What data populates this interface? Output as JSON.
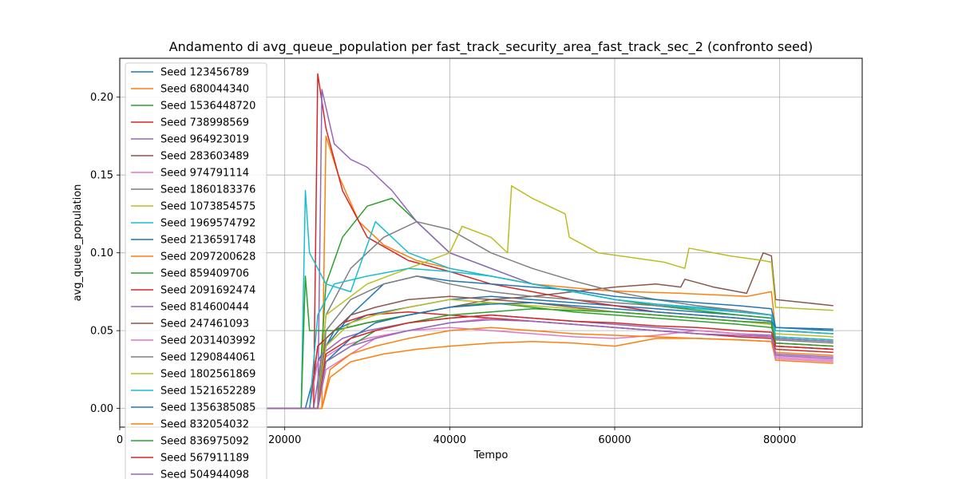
{
  "chart_data": {
    "type": "line",
    "title": "Andamento di avg_queue_population per fast_track_security_area_fast_track_sec_2 (confronto seed)",
    "xlabel": "Tempo",
    "ylabel": "avg_queue_population",
    "xlim": [
      0,
      90000
    ],
    "ylim": [
      -0.012,
      0.225
    ],
    "x_ticks": [
      0,
      20000,
      40000,
      60000,
      80000
    ],
    "x_tick_labels": [
      "0",
      "20000",
      "40000",
      "60000",
      "80000"
    ],
    "y_ticks": [
      0.0,
      0.05,
      0.1,
      0.15,
      0.2
    ],
    "y_tick_labels": [
      "0.00",
      "0.05",
      "0.10",
      "0.15",
      "0.20"
    ],
    "grid": true,
    "legend_position": "top-left",
    "series": [
      {
        "name": "Seed 123456789",
        "color": "#1f77b4",
        "x": [
          15000,
          22500,
          24000,
          26000,
          30000,
          35000,
          40000,
          45000,
          50000,
          55000,
          60000,
          65000,
          70000,
          75000,
          79000,
          79500,
          86500
        ],
        "y": [
          0.0,
          0.0,
          0.03,
          0.05,
          0.06,
          0.065,
          0.07,
          0.072,
          0.07,
          0.068,
          0.066,
          0.064,
          0.062,
          0.06,
          0.058,
          0.05,
          0.048
        ]
      },
      {
        "name": "Seed 680044340",
        "color": "#ff7f0e",
        "x": [
          15000,
          24500,
          25000,
          26500,
          29000,
          32000,
          36000,
          40000,
          45000,
          50000,
          54000,
          58000,
          62000,
          68000,
          72000,
          76000,
          79000,
          79500,
          86500
        ],
        "y": [
          0.0,
          0.0,
          0.175,
          0.15,
          0.12,
          0.105,
          0.095,
          0.09,
          0.085,
          0.08,
          0.078,
          0.076,
          0.075,
          0.074,
          0.073,
          0.072,
          0.075,
          0.05,
          0.048
        ]
      },
      {
        "name": "Seed 1536448720",
        "color": "#2ca02c",
        "x": [
          15000,
          24000,
          25000,
          27000,
          30000,
          33000,
          36000,
          40000,
          45000,
          50000,
          55000,
          60000,
          65000,
          70000,
          75000,
          79000,
          79500,
          86500
        ],
        "y": [
          0.0,
          0.0,
          0.08,
          0.11,
          0.13,
          0.135,
          0.12,
          0.1,
          0.09,
          0.08,
          0.075,
          0.07,
          0.066,
          0.063,
          0.06,
          0.058,
          0.045,
          0.043
        ]
      },
      {
        "name": "Seed 738998569",
        "color": "#d62728",
        "x": [
          15000,
          23500,
          24000,
          25000,
          27000,
          30000,
          35000,
          40000,
          45000,
          50000,
          55000,
          60000,
          65000,
          70000,
          75000,
          79000,
          79500,
          86500
        ],
        "y": [
          0.0,
          0.0,
          0.215,
          0.18,
          0.14,
          0.11,
          0.095,
          0.088,
          0.08,
          0.075,
          0.07,
          0.066,
          0.062,
          0.06,
          0.058,
          0.056,
          0.042,
          0.04
        ]
      },
      {
        "name": "Seed 964923019",
        "color": "#9467bd",
        "x": [
          15000,
          24000,
          24500,
          26000,
          28000,
          30000,
          33000,
          36000,
          40000,
          45000,
          50000,
          55000,
          60000,
          65000,
          70000,
          75000,
          79000,
          79500,
          86500
        ],
        "y": [
          0.0,
          0.0,
          0.205,
          0.17,
          0.16,
          0.155,
          0.14,
          0.12,
          0.1,
          0.09,
          0.08,
          0.075,
          0.07,
          0.067,
          0.065,
          0.063,
          0.06,
          0.045,
          0.043
        ]
      },
      {
        "name": "Seed 283603489",
        "color": "#8c564b",
        "x": [
          15000,
          23000,
          24000,
          26000,
          30000,
          35000,
          40000,
          45000,
          50000,
          55000,
          60000,
          65000,
          68000,
          68500,
          72000,
          76000,
          78000,
          79000,
          79500,
          86500
        ],
        "y": [
          0.0,
          0.0,
          0.04,
          0.05,
          0.055,
          0.06,
          0.065,
          0.07,
          0.072,
          0.075,
          0.078,
          0.08,
          0.078,
          0.083,
          0.078,
          0.074,
          0.1,
          0.098,
          0.07,
          0.066
        ]
      },
      {
        "name": "Seed 974791114",
        "color": "#e377c2",
        "x": [
          15000,
          23000,
          24000,
          27000,
          30000,
          35000,
          40000,
          45000,
          50000,
          55000,
          60000,
          65000,
          70000,
          75000,
          79000,
          79500,
          86500
        ],
        "y": [
          0.0,
          0.0,
          0.03,
          0.04,
          0.045,
          0.05,
          0.055,
          0.058,
          0.056,
          0.054,
          0.052,
          0.05,
          0.048,
          0.046,
          0.045,
          0.033,
          0.031
        ]
      },
      {
        "name": "Seed 1860183376",
        "color": "#7f7f7f",
        "x": [
          15000,
          24000,
          25000,
          28000,
          32000,
          36000,
          40000,
          45000,
          50000,
          55000,
          60000,
          65000,
          70000,
          75000,
          79000,
          79500,
          86500
        ],
        "y": [
          0.0,
          0.0,
          0.06,
          0.09,
          0.11,
          0.12,
          0.115,
          0.1,
          0.09,
          0.082,
          0.075,
          0.07,
          0.066,
          0.063,
          0.06,
          0.04,
          0.038
        ]
      },
      {
        "name": "Seed 1073854575",
        "color": "#bcbd22",
        "x": [
          15000,
          24000,
          25000,
          30000,
          35000,
          40000,
          41500,
          45000,
          47000,
          47500,
          50000,
          54000,
          54500,
          58000,
          62000,
          66000,
          68500,
          69000,
          74000,
          78000,
          79000,
          79500,
          86500
        ],
        "y": [
          0.0,
          0.0,
          0.06,
          0.08,
          0.09,
          0.1,
          0.117,
          0.11,
          0.1,
          0.143,
          0.135,
          0.125,
          0.11,
          0.1,
          0.097,
          0.094,
          0.09,
          0.103,
          0.098,
          0.095,
          0.094,
          0.065,
          0.063
        ]
      },
      {
        "name": "Seed 1969574792",
        "color": "#17becf",
        "x": [
          15000,
          22000,
          22500,
          23000,
          25000,
          28000,
          31000,
          35000,
          40000,
          45000,
          50000,
          55000,
          60000,
          65000,
          70000,
          75000,
          79000,
          79500,
          86500
        ],
        "y": [
          0.0,
          0.0,
          0.14,
          0.1,
          0.08,
          0.075,
          0.12,
          0.1,
          0.09,
          0.085,
          0.08,
          0.075,
          0.07,
          0.067,
          0.065,
          0.062,
          0.06,
          0.05,
          0.048
        ]
      },
      {
        "name": "Seed 2136591748",
        "color": "#1f77b4",
        "x": [
          15000,
          24000,
          25000,
          28000,
          32000,
          36000,
          40000,
          45000,
          50000,
          55000,
          60000,
          65000,
          70000,
          75000,
          79000,
          79500,
          86500
        ],
        "y": [
          0.0,
          0.0,
          0.04,
          0.06,
          0.08,
          0.085,
          0.082,
          0.08,
          0.078,
          0.076,
          0.072,
          0.07,
          0.068,
          0.066,
          0.064,
          0.052,
          0.05
        ]
      },
      {
        "name": "Seed 2097200628",
        "color": "#ff7f0e",
        "x": [
          15000,
          24500,
          25500,
          28000,
          32000,
          36000,
          40000,
          45000,
          50000,
          55000,
          60000,
          65000,
          70000,
          75000,
          79000,
          79500,
          86500
        ],
        "y": [
          0.0,
          0.0,
          0.02,
          0.03,
          0.035,
          0.038,
          0.04,
          0.042,
          0.043,
          0.042,
          0.04,
          0.045,
          0.045,
          0.044,
          0.043,
          0.031,
          0.029
        ]
      },
      {
        "name": "Seed 859409706",
        "color": "#2ca02c",
        "x": [
          15000,
          22000,
          22500,
          23000,
          26000,
          30000,
          35000,
          40000,
          45000,
          50000,
          55000,
          60000,
          65000,
          70000,
          75000,
          79000,
          79500,
          86500
        ],
        "y": [
          0.0,
          0.0,
          0.085,
          0.05,
          0.05,
          0.055,
          0.06,
          0.065,
          0.068,
          0.065,
          0.062,
          0.06,
          0.058,
          0.056,
          0.054,
          0.052,
          0.046,
          0.044
        ]
      },
      {
        "name": "Seed 2091692474",
        "color": "#d62728",
        "x": [
          15000,
          23000,
          24000,
          27000,
          30000,
          35000,
          40000,
          45000,
          50000,
          55000,
          60000,
          65000,
          70000,
          75000,
          79000,
          79500,
          86500
        ],
        "y": [
          0.0,
          0.0,
          0.04,
          0.055,
          0.06,
          0.062,
          0.06,
          0.058,
          0.056,
          0.054,
          0.052,
          0.05,
          0.048,
          0.046,
          0.045,
          0.038,
          0.036
        ]
      },
      {
        "name": "Seed 814600444",
        "color": "#9467bd",
        "x": [
          15000,
          23500,
          24500,
          27000,
          30000,
          35000,
          40000,
          45000,
          50000,
          55000,
          60000,
          65000,
          70000,
          75000,
          79000,
          79500,
          86500
        ],
        "y": [
          0.0,
          0.0,
          0.035,
          0.045,
          0.05,
          0.055,
          0.058,
          0.06,
          0.058,
          0.056,
          0.054,
          0.052,
          0.05,
          0.048,
          0.047,
          0.034,
          0.032
        ]
      },
      {
        "name": "Seed 247461093",
        "color": "#8c564b",
        "x": [
          15000,
          24000,
          25000,
          28000,
          31000,
          35000,
          40000,
          45000,
          50000,
          55000,
          60000,
          65000,
          70000,
          75000,
          79000,
          79500,
          86500
        ],
        "y": [
          0.0,
          0.0,
          0.045,
          0.06,
          0.065,
          0.07,
          0.072,
          0.07,
          0.068,
          0.065,
          0.062,
          0.06,
          0.058,
          0.056,
          0.054,
          0.04,
          0.038
        ]
      },
      {
        "name": "Seed 2031403992",
        "color": "#e377c2",
        "x": [
          15000,
          24000,
          25000,
          28000,
          31000,
          35000,
          40000,
          45000,
          50000,
          55000,
          60000,
          65000,
          70000,
          75000,
          79000,
          79500,
          86500
        ],
        "y": [
          0.0,
          0.0,
          0.025,
          0.035,
          0.045,
          0.05,
          0.052,
          0.05,
          0.048,
          0.046,
          0.045,
          0.047,
          0.05,
          0.048,
          0.046,
          0.032,
          0.03
        ]
      },
      {
        "name": "Seed 1290844061",
        "color": "#7f7f7f",
        "x": [
          15000,
          24000,
          25000,
          28000,
          32000,
          36000,
          40000,
          45000,
          50000,
          55000,
          60000,
          65000,
          70000,
          75000,
          79000,
          79500,
          86500
        ],
        "y": [
          0.0,
          0.0,
          0.05,
          0.07,
          0.08,
          0.085,
          0.08,
          0.075,
          0.072,
          0.07,
          0.068,
          0.066,
          0.064,
          0.062,
          0.06,
          0.044,
          0.042
        ]
      },
      {
        "name": "Seed 1802561869",
        "color": "#bcbd22",
        "x": [
          15000,
          24000,
          25000,
          28000,
          31000,
          35000,
          40000,
          45000,
          50000,
          55000,
          60000,
          65000,
          70000,
          75000,
          79000,
          79500,
          86500
        ],
        "y": [
          0.0,
          0.0,
          0.04,
          0.055,
          0.06,
          0.065,
          0.07,
          0.068,
          0.066,
          0.064,
          0.062,
          0.06,
          0.058,
          0.056,
          0.054,
          0.048,
          0.046
        ]
      },
      {
        "name": "Seed 1521652289",
        "color": "#17becf",
        "x": [
          15000,
          23000,
          24000,
          26000,
          30000,
          35000,
          40000,
          45000,
          50000,
          55000,
          60000,
          65000,
          70000,
          75000,
          79000,
          79500,
          86500
        ],
        "y": [
          0.0,
          0.0,
          0.06,
          0.08,
          0.085,
          0.09,
          0.088,
          0.085,
          0.08,
          0.075,
          0.07,
          0.067,
          0.064,
          0.062,
          0.06,
          0.046,
          0.044
        ]
      },
      {
        "name": "Seed 1356385085",
        "color": "#1f77b4",
        "x": [
          15000,
          24000,
          25000,
          28000,
          31000,
          35000,
          40000,
          45000,
          50000,
          55000,
          60000,
          65000,
          70000,
          75000,
          79000,
          79500,
          86500
        ],
        "y": [
          0.0,
          0.0,
          0.03,
          0.045,
          0.055,
          0.06,
          0.065,
          0.067,
          0.068,
          0.066,
          0.064,
          0.062,
          0.06,
          0.058,
          0.056,
          0.052,
          0.051
        ]
      },
      {
        "name": "Seed 832054032",
        "color": "#ff7f0e",
        "x": [
          15000,
          24500,
          25500,
          28000,
          31000,
          35000,
          40000,
          45000,
          50000,
          55000,
          60000,
          65000,
          70000,
          75000,
          79000,
          79500,
          86500
        ],
        "y": [
          0.0,
          0.0,
          0.025,
          0.035,
          0.04,
          0.045,
          0.05,
          0.052,
          0.05,
          0.048,
          0.047,
          0.046,
          0.045,
          0.044,
          0.043,
          0.036,
          0.034
        ]
      },
      {
        "name": "Seed 836975092",
        "color": "#2ca02c",
        "x": [
          15000,
          24000,
          25000,
          28000,
          31000,
          35000,
          40000,
          45000,
          50000,
          55000,
          60000,
          65000,
          70000,
          75000,
          79000,
          79500,
          86500
        ],
        "y": [
          0.0,
          0.0,
          0.03,
          0.04,
          0.05,
          0.055,
          0.06,
          0.062,
          0.064,
          0.063,
          0.062,
          0.06,
          0.058,
          0.056,
          0.055,
          0.042,
          0.04
        ]
      },
      {
        "name": "Seed 567911189",
        "color": "#d62728",
        "x": [
          15000,
          24000,
          25000,
          28000,
          31000,
          35000,
          40000,
          45000,
          50000,
          55000,
          60000,
          65000,
          70000,
          75000,
          79000,
          79500,
          86500
        ],
        "y": [
          0.0,
          0.0,
          0.035,
          0.045,
          0.05,
          0.055,
          0.058,
          0.06,
          0.058,
          0.056,
          0.055,
          0.053,
          0.052,
          0.05,
          0.049,
          0.04,
          0.038
        ]
      },
      {
        "name": "Seed 504944098",
        "color": "#9467bd",
        "x": [
          15000,
          24000,
          25000,
          28000,
          31000,
          35000,
          40000,
          45000,
          50000,
          55000,
          60000,
          65000,
          70000,
          75000,
          79000,
          79500,
          86500
        ],
        "y": [
          0.0,
          0.0,
          0.03,
          0.04,
          0.045,
          0.05,
          0.055,
          0.057,
          0.056,
          0.054,
          0.052,
          0.05,
          0.048,
          0.047,
          0.046,
          0.035,
          0.033
        ]
      }
    ]
  }
}
